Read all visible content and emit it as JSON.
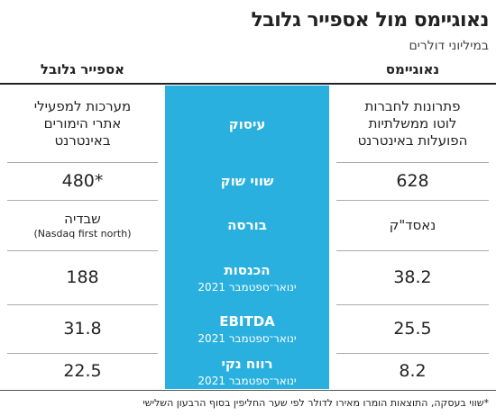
{
  "header": {
    "title": "נאוגיימס מול אספייר גלובל",
    "subtitle": "במיליוני דולרים"
  },
  "table": {
    "columns": {
      "right": "נאוגיימס",
      "left": "אספייר גלובל"
    },
    "rows": [
      {
        "label": "עיסוק",
        "right": [
          "פתרונות לחברות",
          "לוטו ממשלתיות",
          "הפועלות באינטרנט"
        ],
        "left": [
          "מערכות למפעילי",
          "אתרי הימורים",
          "באינטרנט"
        ]
      },
      {
        "label": "שווי שוק",
        "right": [
          "628"
        ],
        "left": [
          "480*"
        ]
      },
      {
        "label": "בורסה",
        "right": [
          "נאסד\"ק"
        ],
        "left": [
          "שבדיה",
          "(Nasdaq first north)"
        ]
      },
      {
        "label": "הכנסות",
        "sublabel": "ינואר־ספטמבר 2021",
        "right": [
          "38.2"
        ],
        "left": [
          "188"
        ]
      },
      {
        "label": "EBITDA",
        "sublabel": "ינואר־ספטמבר 2021",
        "right": [
          "25.5"
        ],
        "left": [
          "31.8"
        ]
      },
      {
        "label": "רווח נקי",
        "sublabel": "ינואר־ספטמבר 2021",
        "right": [
          "8.2"
        ],
        "left": [
          "22.5"
        ]
      }
    ]
  },
  "footnote": "*שווי בעסקה, התוצאות הומרו מאירו לדולר לפי שער החליפין בסוף הרבעון השלישי"
}
